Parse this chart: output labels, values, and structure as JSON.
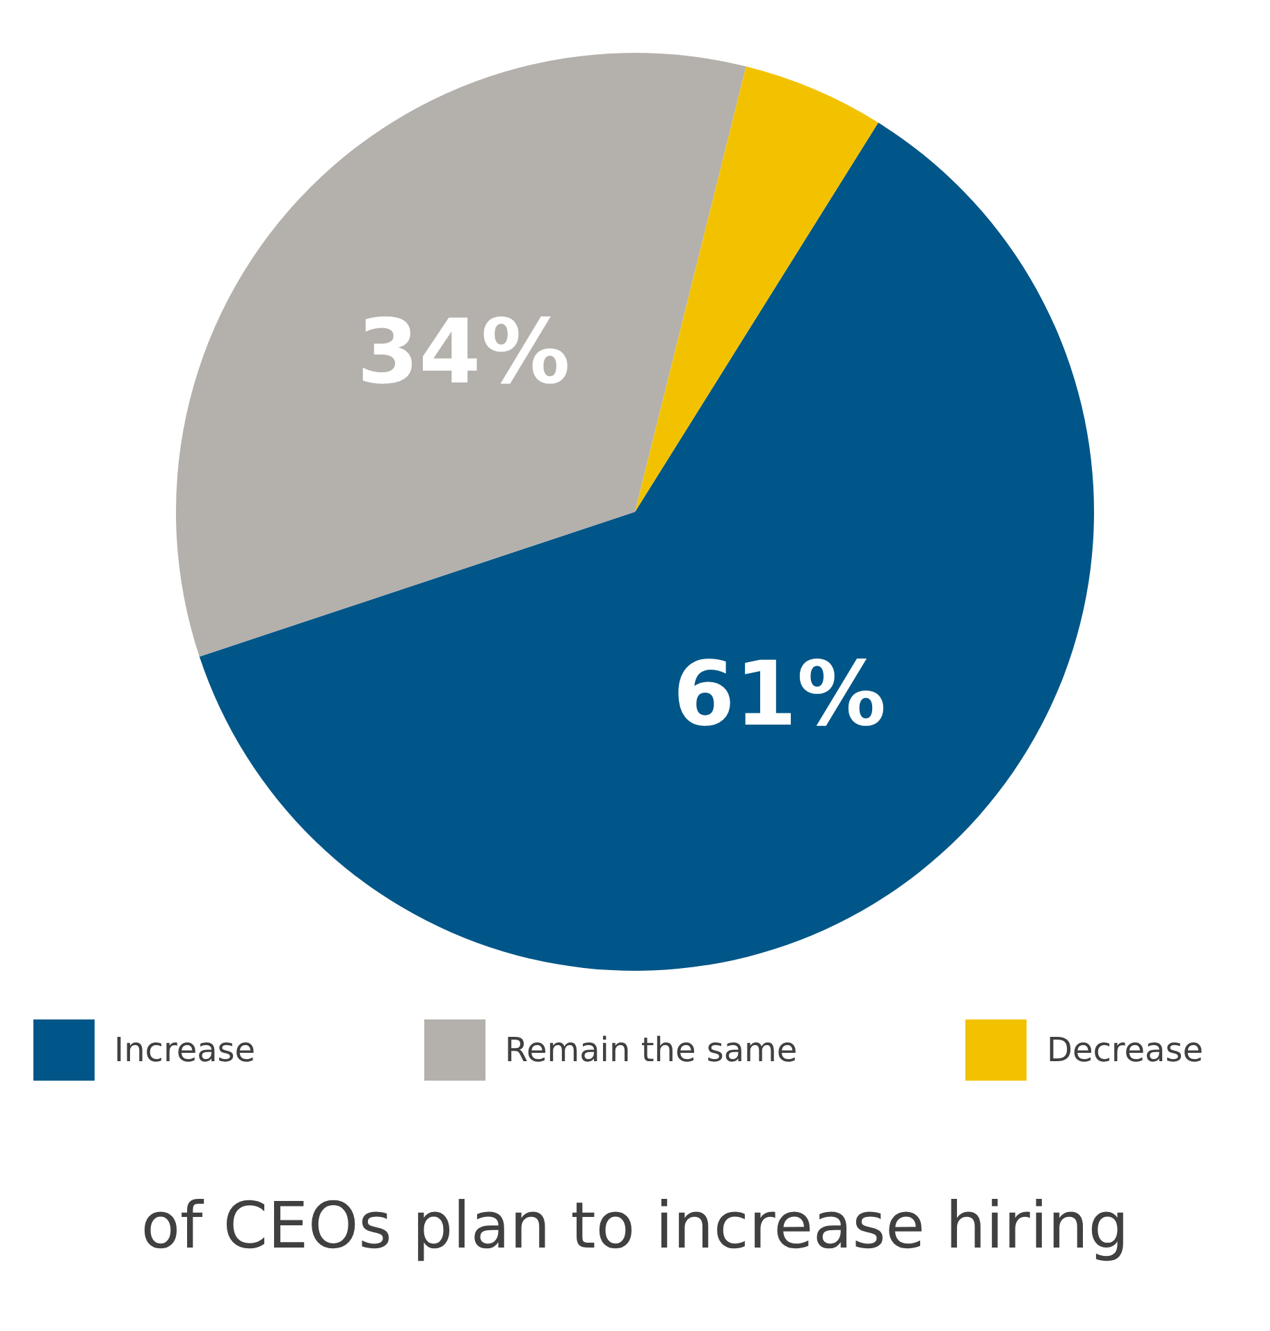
{
  "chart_data": {
    "type": "pie",
    "categories": [
      "Increase",
      "Remain the same",
      "Decrease"
    ],
    "values": [
      61,
      34,
      5
    ],
    "colors": [
      "#005688",
      "#b4b0ac",
      "#f2c200"
    ],
    "value_labels": [
      "61%",
      "34%",
      null
    ],
    "legend": "bottom",
    "annotations": [
      "of CEOs plan to increase hiring"
    ]
  }
}
